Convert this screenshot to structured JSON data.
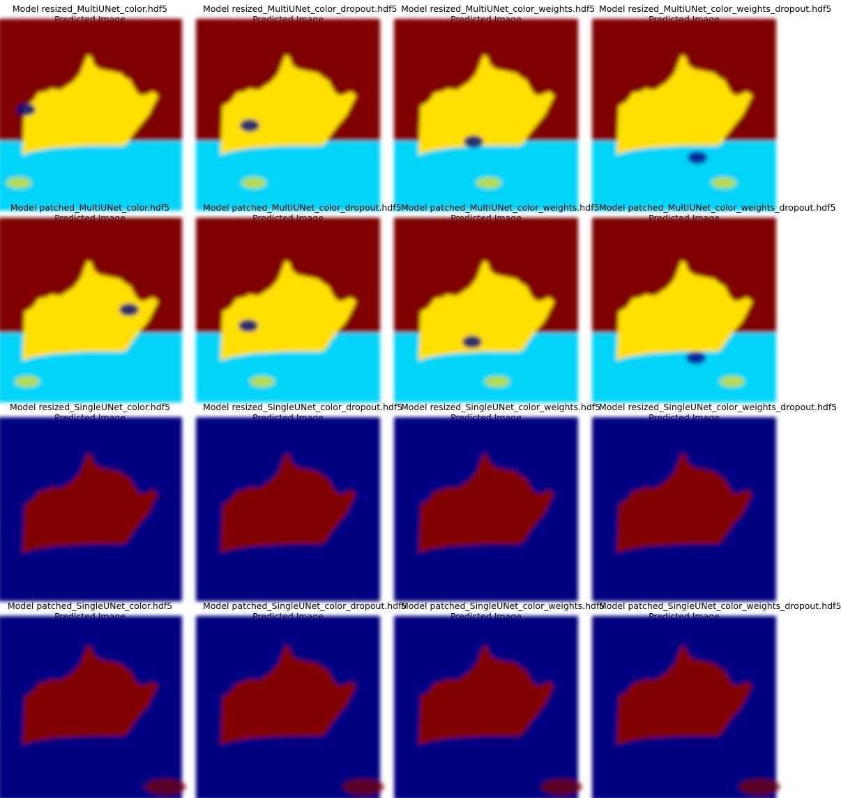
{
  "subtitle": "Predicted Image",
  "colors": {
    "multi_background": "#800000",
    "multi_object": "#ffe000",
    "multi_water": "#00d4f8",
    "multi_noise": "#000088",
    "single_background": "#000080",
    "single_object": "#800000"
  },
  "panels": [
    {
      "title": "Model resized_MultiUNet_color.hdf5",
      "kind": "multi"
    },
    {
      "title": "Model resized_MultiUNet_color_dropout.hdf5",
      "kind": "multi"
    },
    {
      "title": "Model resized_MultiUNet_color_weights.hdf5",
      "kind": "multi"
    },
    {
      "title": "Model resized_MultiUNet_color_weights_dropout.hdf5",
      "kind": "multi"
    },
    {
      "title": "Model patched_MultiUNet_color.hdf5",
      "kind": "multi"
    },
    {
      "title": "Model patched_MultiUNet_color_dropout.hdf5",
      "kind": "multi"
    },
    {
      "title": "Model patched_MultiUNet_color_weights.hdf5",
      "kind": "multi"
    },
    {
      "title": "Model patched_MultiUNet_color_weights_dropout.hdf5",
      "kind": "multi"
    },
    {
      "title": "Model resized_SingleUNet_color.hdf5",
      "kind": "single"
    },
    {
      "title": "Model resized_SingleUNet_color_dropout.hdf5",
      "kind": "single"
    },
    {
      "title": "Model resized_SingleUNet_color_weights.hdf5",
      "kind": "single"
    },
    {
      "title": "Model resized_SingleUNet_color_weights_dropout.hdf5",
      "kind": "single"
    },
    {
      "title": "Model patched_SingleUNet_color.hdf5",
      "kind": "single"
    },
    {
      "title": "Model patched_SingleUNet_color_dropout.hdf5",
      "kind": "single"
    },
    {
      "title": "Model patched_SingleUNet_color_weights.hdf5",
      "kind": "single"
    },
    {
      "title": "Model patched_SingleUNet_color_weights_dropout.hdf5",
      "kind": "single"
    }
  ]
}
